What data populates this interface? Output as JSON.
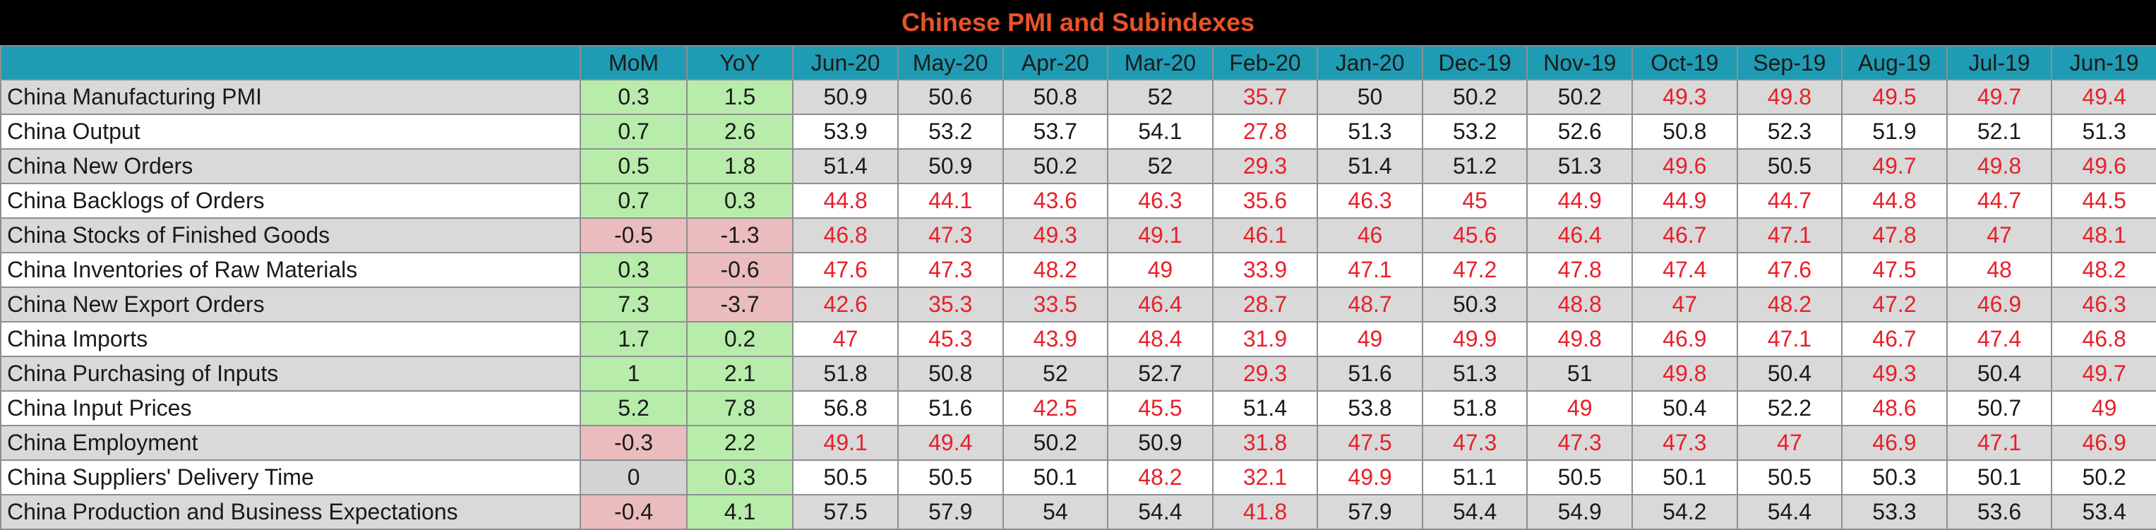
{
  "title": "Chinese PMI and Subindexes",
  "colors": {
    "header_bg": "#1f9bb3",
    "title_bg": "#000000",
    "title_text": "#e8532a",
    "positive_bg": "#b8ecab",
    "negative_bg": "#ebbcbd",
    "below50_text": "#e8202a"
  },
  "chart_data": {
    "type": "table",
    "title": "Chinese PMI and Subindexes",
    "columns": [
      "",
      "MoM",
      "YoY",
      "Jun-20",
      "May-20",
      "Apr-20",
      "Mar-20",
      "Feb-20",
      "Jan-20",
      "Dec-19",
      "Nov-19",
      "Oct-19",
      "Sep-19",
      "Aug-19",
      "Jul-19",
      "Jun-19"
    ],
    "rows": [
      {
        "name": "China Manufacturing PMI",
        "mom": "0.3",
        "yoy": "1.5",
        "values": [
          "50.9",
          "50.6",
          "50.8",
          "52",
          "35.7",
          "50",
          "50.2",
          "50.2",
          "49.3",
          "49.8",
          "49.5",
          "49.7",
          "49.4"
        ]
      },
      {
        "name": "China Output",
        "mom": "0.7",
        "yoy": "2.6",
        "values": [
          "53.9",
          "53.2",
          "53.7",
          "54.1",
          "27.8",
          "51.3",
          "53.2",
          "52.6",
          "50.8",
          "52.3",
          "51.9",
          "52.1",
          "51.3"
        ]
      },
      {
        "name": "China New Orders",
        "mom": "0.5",
        "yoy": "1.8",
        "values": [
          "51.4",
          "50.9",
          "50.2",
          "52",
          "29.3",
          "51.4",
          "51.2",
          "51.3",
          "49.6",
          "50.5",
          "49.7",
          "49.8",
          "49.6"
        ]
      },
      {
        "name": "China Backlogs of Orders",
        "mom": "0.7",
        "yoy": "0.3",
        "values": [
          "44.8",
          "44.1",
          "43.6",
          "46.3",
          "35.6",
          "46.3",
          "45",
          "44.9",
          "44.9",
          "44.7",
          "44.8",
          "44.7",
          "44.5"
        ]
      },
      {
        "name": "China Stocks of Finished Goods",
        "mom": "-0.5",
        "yoy": "-1.3",
        "values": [
          "46.8",
          "47.3",
          "49.3",
          "49.1",
          "46.1",
          "46",
          "45.6",
          "46.4",
          "46.7",
          "47.1",
          "47.8",
          "47",
          "48.1"
        ]
      },
      {
        "name": "China Inventories of Raw Materials",
        "mom": "0.3",
        "yoy": "-0.6",
        "values": [
          "47.6",
          "47.3",
          "48.2",
          "49",
          "33.9",
          "47.1",
          "47.2",
          "47.8",
          "47.4",
          "47.6",
          "47.5",
          "48",
          "48.2"
        ]
      },
      {
        "name": "China New Export Orders",
        "mom": "7.3",
        "yoy": "-3.7",
        "values": [
          "42.6",
          "35.3",
          "33.5",
          "46.4",
          "28.7",
          "48.7",
          "50.3",
          "48.8",
          "47",
          "48.2",
          "47.2",
          "46.9",
          "46.3"
        ]
      },
      {
        "name": "China Imports",
        "mom": "1.7",
        "yoy": "0.2",
        "values": [
          "47",
          "45.3",
          "43.9",
          "48.4",
          "31.9",
          "49",
          "49.9",
          "49.8",
          "46.9",
          "47.1",
          "46.7",
          "47.4",
          "46.8"
        ]
      },
      {
        "name": "China Purchasing of Inputs",
        "mom": "1",
        "yoy": "2.1",
        "values": [
          "51.8",
          "50.8",
          "52",
          "52.7",
          "29.3",
          "51.6",
          "51.3",
          "51",
          "49.8",
          "50.4",
          "49.3",
          "50.4",
          "49.7"
        ]
      },
      {
        "name": "China Input Prices",
        "mom": "5.2",
        "yoy": "7.8",
        "values": [
          "56.8",
          "51.6",
          "42.5",
          "45.5",
          "51.4",
          "53.8",
          "51.8",
          "49",
          "50.4",
          "52.2",
          "48.6",
          "50.7",
          "49"
        ]
      },
      {
        "name": "China Employment",
        "mom": "-0.3",
        "yoy": "2.2",
        "values": [
          "49.1",
          "49.4",
          "50.2",
          "50.9",
          "31.8",
          "47.5",
          "47.3",
          "47.3",
          "47.3",
          "47",
          "46.9",
          "47.1",
          "46.9"
        ]
      },
      {
        "name": "China Suppliers' Delivery Time",
        "mom": "0",
        "yoy": "0.3",
        "values": [
          "50.5",
          "50.5",
          "50.1",
          "48.2",
          "32.1",
          "49.9",
          "51.1",
          "50.5",
          "50.1",
          "50.5",
          "50.3",
          "50.1",
          "50.2"
        ]
      },
      {
        "name": "China Production and Business Expectations",
        "mom": "-0.4",
        "yoy": "4.1",
        "values": [
          "57.5",
          "57.9",
          "54",
          "54.4",
          "41.8",
          "57.9",
          "54.4",
          "54.9",
          "54.2",
          "54.4",
          "53.3",
          "53.6",
          "53.4"
        ]
      }
    ]
  }
}
